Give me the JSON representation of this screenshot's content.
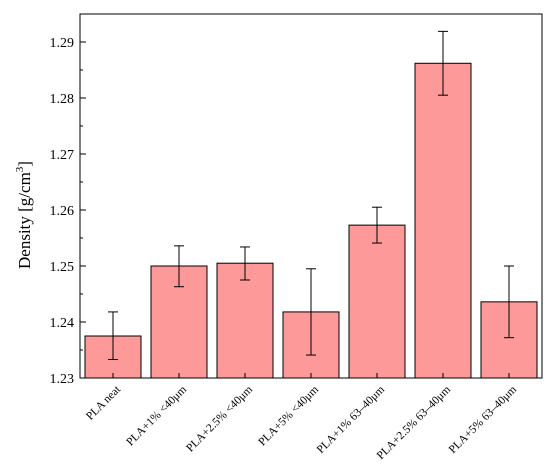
{
  "chart_data": {
    "type": "bar",
    "categories": [
      "PLA neat",
      "PLA+1% <40μm",
      "PLA+2.5% <40μm",
      "PLA+5% <40μm",
      "PLA+1% 63–40μm",
      "PLA+2.5% 63–40μm",
      "PLA+5% 63–40μm"
    ],
    "values": [
      1.2375,
      1.25,
      1.2505,
      1.2418,
      1.2573,
      1.2862,
      1.2436
    ],
    "error_low": [
      1.2333,
      1.2463,
      1.2475,
      1.2341,
      1.2541,
      1.2805,
      1.2372
    ],
    "error_high": [
      1.2418,
      1.2536,
      1.2534,
      1.2495,
      1.2605,
      1.2919,
      1.25
    ],
    "ylabel": "Density [g/cm",
    "ylabel_superscript": "3",
    "ylabel_close": "]",
    "xlabel": "",
    "title": "",
    "ylim": [
      1.23,
      1.295
    ],
    "yticks": [
      "1.23",
      "1.24",
      "1.25",
      "1.26",
      "1.27",
      "1.28",
      "1.29"
    ],
    "grid": false,
    "bar_color": "#fe9999",
    "bar_edge_color": "#000000"
  }
}
